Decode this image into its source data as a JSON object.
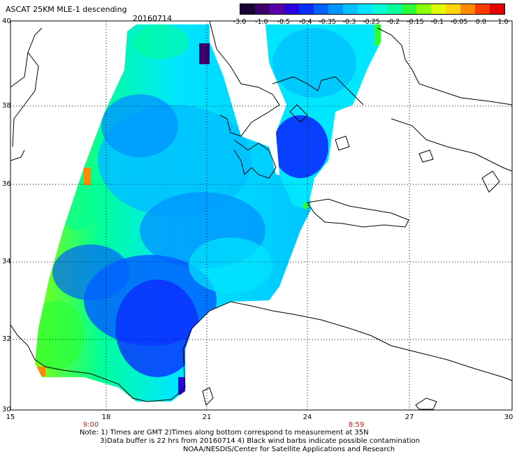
{
  "title": "ASCAT 25KM MLE-1 descending",
  "date": "20160714",
  "colorbar": {
    "colors": [
      "#1a0033",
      "#3d006b",
      "#5a00a8",
      "#2a00e0",
      "#0a2dff",
      "#0061ff",
      "#0096ff",
      "#00c2ff",
      "#00e6ff",
      "#00ffd8",
      "#00ff9a",
      "#2bff3a",
      "#8aff00",
      "#ddff00",
      "#ffd400",
      "#ff8a00",
      "#ff3a00",
      "#e60000"
    ],
    "labels": [
      "-3.0",
      "-1.0",
      "-0.5",
      "-0.4",
      "-0.35",
      "-0.3",
      "-0.25",
      "-0.2",
      "-0.15",
      "-0.1",
      "-0.05",
      "0.0",
      "1.0"
    ]
  },
  "lat_labels": [
    "40",
    "38",
    "36",
    "34",
    "32",
    "30"
  ],
  "lon_labels": [
    "15",
    "18",
    "21",
    "24",
    "27",
    "30"
  ],
  "times": [
    "9:00",
    "8:59"
  ],
  "note": {
    "line1": "Note: 1) Times are GMT 2)Times along bottom correspond to measurement at 35N",
    "line2": "3)Data buffer is 22 hrs from 20160714 4) Black wind barbs indicate possible contamination",
    "line3": "NOAA/NESDIS/Center for Satellite Applications and Research"
  }
}
